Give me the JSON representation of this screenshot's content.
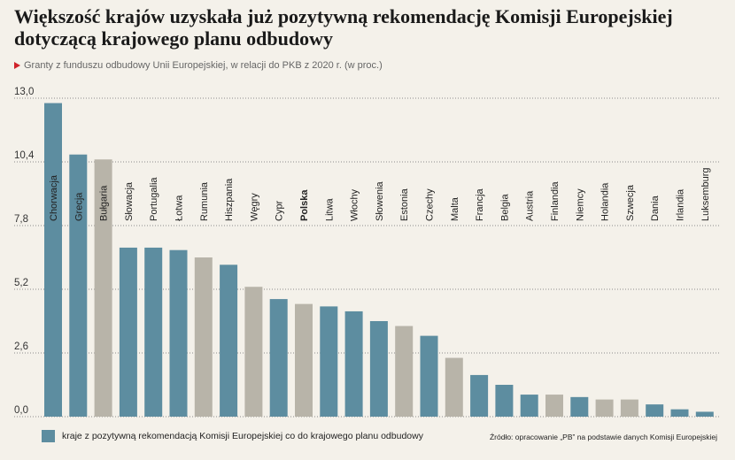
{
  "chart_data": {
    "type": "bar",
    "title": [
      "Większość krajów uzyskała już pozytywną rekomendację Komisji Europejskiej",
      "dotyczącą krajowego planu odbudowy"
    ],
    "subtitle": "Granty z funduszu odbudowy Unii Europejskiej, w relacji do PKB z 2020 r. (w proc.)",
    "categories": [
      "Chorwacja",
      "Grecja",
      "Bułgaria",
      "Słowacja",
      "Portugalia",
      "Łotwa",
      "Rumunia",
      "Hiszpania",
      "Węgry",
      "Cypr",
      "Polska",
      "Litwa",
      "Włochy",
      "Słowenia",
      "Estonia",
      "Czechy",
      "Malta",
      "Francja",
      "Belgia",
      "Austria",
      "Finlandia",
      "Niemcy",
      "Holandia",
      "Szwecja",
      "Dania",
      "Irlandia",
      "Luksemburg"
    ],
    "values": [
      12.8,
      10.7,
      10.5,
      6.9,
      6.9,
      6.8,
      6.5,
      6.2,
      5.3,
      4.8,
      4.6,
      4.5,
      4.3,
      3.9,
      3.7,
      3.3,
      2.4,
      1.7,
      1.3,
      0.9,
      0.9,
      0.8,
      0.7,
      0.7,
      0.5,
      0.3,
      0.2
    ],
    "approved": [
      true,
      true,
      false,
      true,
      true,
      true,
      false,
      true,
      false,
      true,
      false,
      true,
      true,
      true,
      false,
      true,
      false,
      true,
      true,
      true,
      false,
      true,
      false,
      false,
      true,
      true,
      true
    ],
    "emphasized": [
      false,
      false,
      false,
      false,
      false,
      false,
      false,
      false,
      false,
      false,
      true,
      false,
      false,
      false,
      false,
      false,
      false,
      false,
      false,
      false,
      false,
      false,
      false,
      false,
      false,
      false,
      false
    ],
    "ylim": [
      0,
      13
    ],
    "y_ticks": [
      0,
      2.6,
      5.2,
      7.8,
      10.4,
      13.0
    ],
    "y_tick_labels": [
      "0,0",
      "2,6",
      "5,2",
      "7,8",
      "10,4",
      "13,0"
    ],
    "grid": true,
    "legend": {
      "label": "kraje z pozytywną rekomendacją Komisji Europejskiej co do krajowego planu odbudowy"
    },
    "legend_placement": "bottom-left",
    "source": "Źródło: opracowanie „PB” na podstawie danych Komisji Europejskiej",
    "colors": {
      "approved": "#5d8da0",
      "pending": "#b8b4a9",
      "accent": "#d0232a",
      "background": "#f4f1ea"
    }
  }
}
